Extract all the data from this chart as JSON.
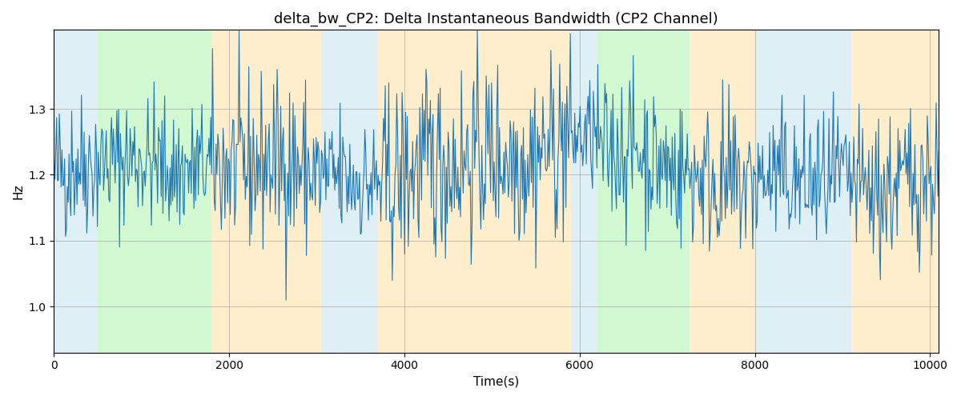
{
  "title": "delta_bw_CP2: Delta Instantaneous Bandwidth (CP2 Channel)",
  "xlabel": "Time(s)",
  "ylabel": "Hz",
  "xlim": [
    0,
    10100
  ],
  "ylim": [
    0.93,
    1.42
  ],
  "yticks": [
    1.0,
    1.1,
    1.2,
    1.3
  ],
  "line_color": "#1f77b4",
  "line_width": 0.8,
  "grid": true,
  "background_regions": [
    {
      "xmin": 0,
      "xmax": 500,
      "color": "#add8e6",
      "alpha": 0.4
    },
    {
      "xmin": 500,
      "xmax": 1800,
      "color": "#90ee90",
      "alpha": 0.4
    },
    {
      "xmin": 1800,
      "xmax": 3050,
      "color": "#ffd580",
      "alpha": 0.4
    },
    {
      "xmin": 3050,
      "xmax": 3700,
      "color": "#add8e6",
      "alpha": 0.4
    },
    {
      "xmin": 3700,
      "xmax": 5900,
      "color": "#ffd580",
      "alpha": 0.4
    },
    {
      "xmin": 5900,
      "xmax": 6200,
      "color": "#add8e6",
      "alpha": 0.4
    },
    {
      "xmin": 6200,
      "xmax": 7250,
      "color": "#90ee90",
      "alpha": 0.4
    },
    {
      "xmin": 7250,
      "xmax": 8000,
      "color": "#ffd580",
      "alpha": 0.4
    },
    {
      "xmin": 8000,
      "xmax": 9100,
      "color": "#add8e6",
      "alpha": 0.4
    },
    {
      "xmin": 9100,
      "xmax": 10200,
      "color": "#ffd580",
      "alpha": 0.4
    }
  ],
  "seed": 42,
  "n_points": 1000,
  "base_mean": 1.2,
  "figsize": [
    12.0,
    5.0
  ],
  "dpi": 100
}
